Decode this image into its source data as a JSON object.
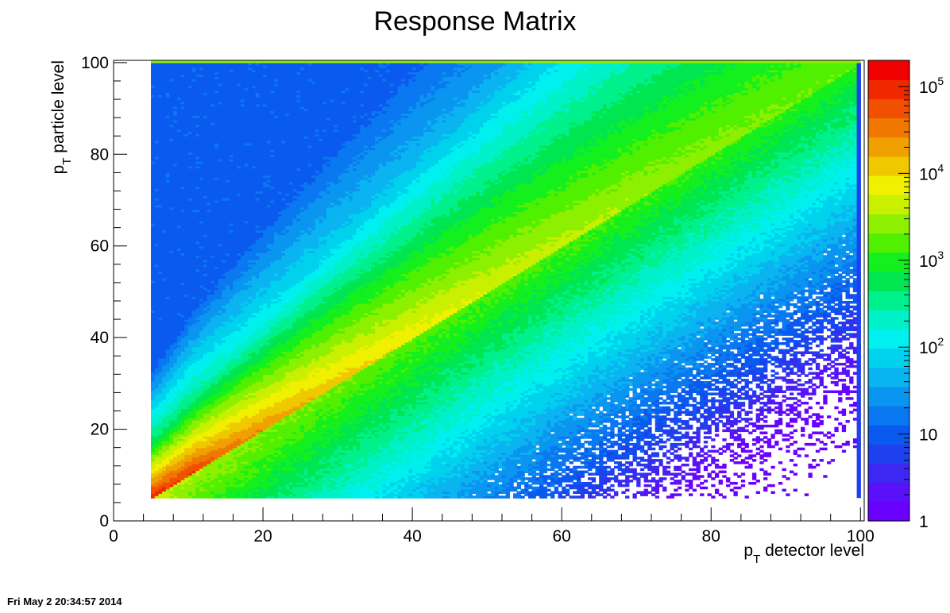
{
  "chart_data": {
    "type": "heatmap",
    "title": "Response Matrix",
    "xlabel": {
      "main": "p",
      "sub": "T",
      "rest": " detector level"
    },
    "ylabel": {
      "main": "p",
      "sub": "T",
      "rest": " particle level"
    },
    "xlim": [
      0,
      100.5
    ],
    "ylim": [
      0,
      100.5
    ],
    "x_ticks": [
      "0",
      "20",
      "40",
      "60",
      "80",
      "100"
    ],
    "y_ticks": [
      "0",
      "20",
      "40",
      "60",
      "80",
      "100"
    ],
    "z_scale": "log",
    "z_range": [
      1,
      200000
    ],
    "z_ticks": [
      {
        "value": 1,
        "base": "1",
        "exp": ""
      },
      {
        "value": 10,
        "base": "10",
        "exp": ""
      },
      {
        "value": 100,
        "base": "10",
        "exp": "2"
      },
      {
        "value": 1000,
        "base": "10",
        "exp": "3"
      },
      {
        "value": 10000,
        "base": "10",
        "exp": "4"
      },
      {
        "value": 100000,
        "base": "10",
        "exp": "5"
      }
    ],
    "data_range": {
      "x": [
        5,
        100
      ],
      "y": [
        5,
        100
      ]
    },
    "description_of_cells": "counts peak along diagonal x = y, rising to ~1e5 near p_T = 5",
    "palette": [
      "#6a00ff",
      "#5a10f8",
      "#3c28f0",
      "#1e40ee",
      "#0a5af0",
      "#0a78f0",
      "#0a96f0",
      "#0ab4f0",
      "#00d2ee",
      "#00f0f0",
      "#00f0c8",
      "#00f08c",
      "#00e650",
      "#14f01e",
      "#50f000",
      "#8cf000",
      "#c8f000",
      "#f0f000",
      "#f0c800",
      "#f0a000",
      "#f07800",
      "#f05000",
      "#f02800",
      "#f00000"
    ]
  },
  "footer": {
    "timestamp": "Fri May  2 20:34:57 2014"
  }
}
